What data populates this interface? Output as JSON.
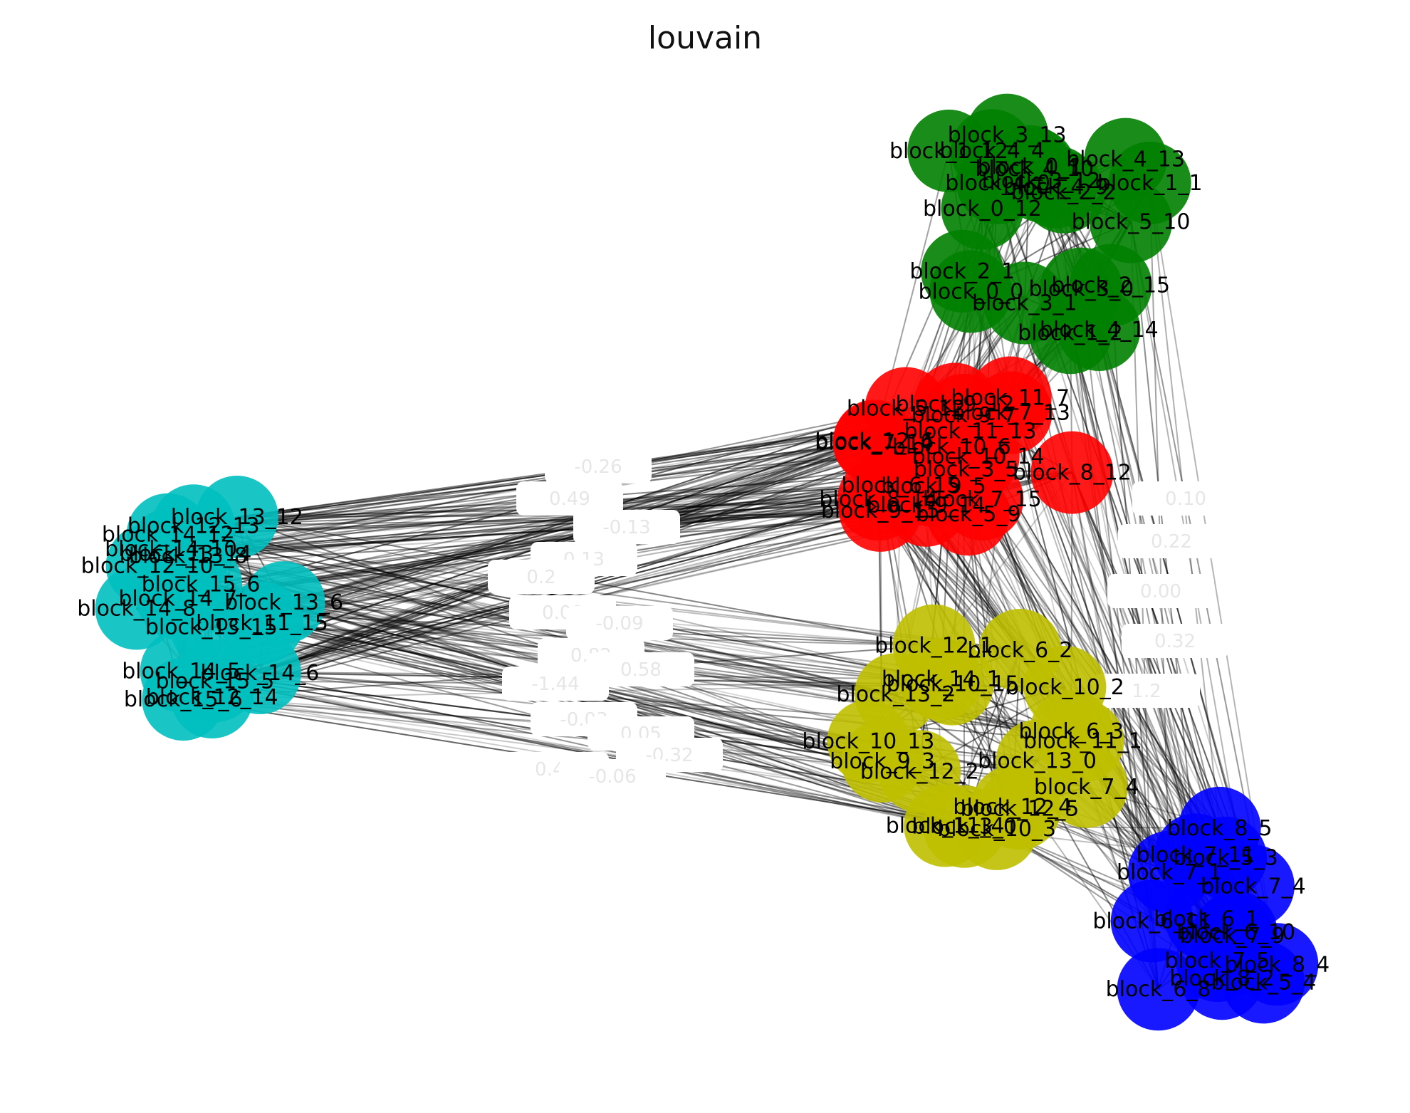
{
  "title": "louvain",
  "communities": [
    {
      "id": "green",
      "color": "#008000",
      "labels": [
        "block_4_0",
        "block_1_12",
        "block_4_4",
        "block_4_14",
        "block_3_13",
        "block_4_10",
        "block_4_9",
        "block_0_12",
        "block_1_2",
        "block_4_13",
        "block_2_15",
        "block_0_1",
        "block_3_1",
        "block_1_1",
        "block_2_1",
        "block_2_2",
        "block_3_0",
        "block_0_0",
        "block_5_10",
        "block_3_12"
      ]
    },
    {
      "id": "red",
      "color": "#ff0000",
      "labels": [
        "block_8_14",
        "block_7_13",
        "block_7_14",
        "block_11_13",
        "block_10_6",
        "block_9_12",
        "block_9_7",
        "block_9_14",
        "block_9_15",
        "block_3_5",
        "block_7_15",
        "block_10_14",
        "block_5_9",
        "block_9_5",
        "block_11_7",
        "block_12_6",
        "block_5_12",
        "block_8_12",
        "block_6_15"
      ]
    },
    {
      "id": "olive",
      "color": "#bfbf00",
      "labels": [
        "block_10_15",
        "block_10_13",
        "block_12_4",
        "block_10_2",
        "block_11_1",
        "block_14_1",
        "block_6_2",
        "block_3_0",
        "block_6_3",
        "block_12_5",
        "block_12_1",
        "block_13_2",
        "block_7_4",
        "block_13_0",
        "block_9_3",
        "block_11_4",
        "block_10_3",
        "block_12_2"
      ]
    },
    {
      "id": "cyan",
      "color": "#00bfbf",
      "labels": [
        "block_11_15",
        "block_12_13",
        "block_13_12",
        "block_12_10",
        "block_13_15",
        "block_12_14",
        "block_14_10",
        "block_13_14",
        "block_14_12",
        "block_15_6",
        "block_14_7",
        "block_13_8",
        "block_15_6",
        "block_14_5",
        "block_15_5",
        "block_14_6",
        "block_13_6",
        "block_14_8"
      ]
    },
    {
      "id": "blue",
      "color": "#0000ff",
      "labels": [
        "block_5_3",
        "block_6_11",
        "block_5_4",
        "block_6_1",
        "block_7_1",
        "block_6_10",
        "block_7_9",
        "block_8_5",
        "block_7_11",
        "block_8_2",
        "block_7_4",
        "block_8_4",
        "block_6_8",
        "block_7_5"
      ]
    }
  ],
  "edge_labels": [
    "-0.26",
    "0.49",
    "-0.13",
    "0.13",
    "0.2",
    "0.08",
    "-0.09",
    "0.82",
    "0.58",
    "-1.44",
    "-0.03",
    "0.05",
    "-0.32",
    "0.43",
    "-0.06",
    "0.10",
    "0.22",
    "0.00",
    "0.32",
    "1.2"
  ]
}
